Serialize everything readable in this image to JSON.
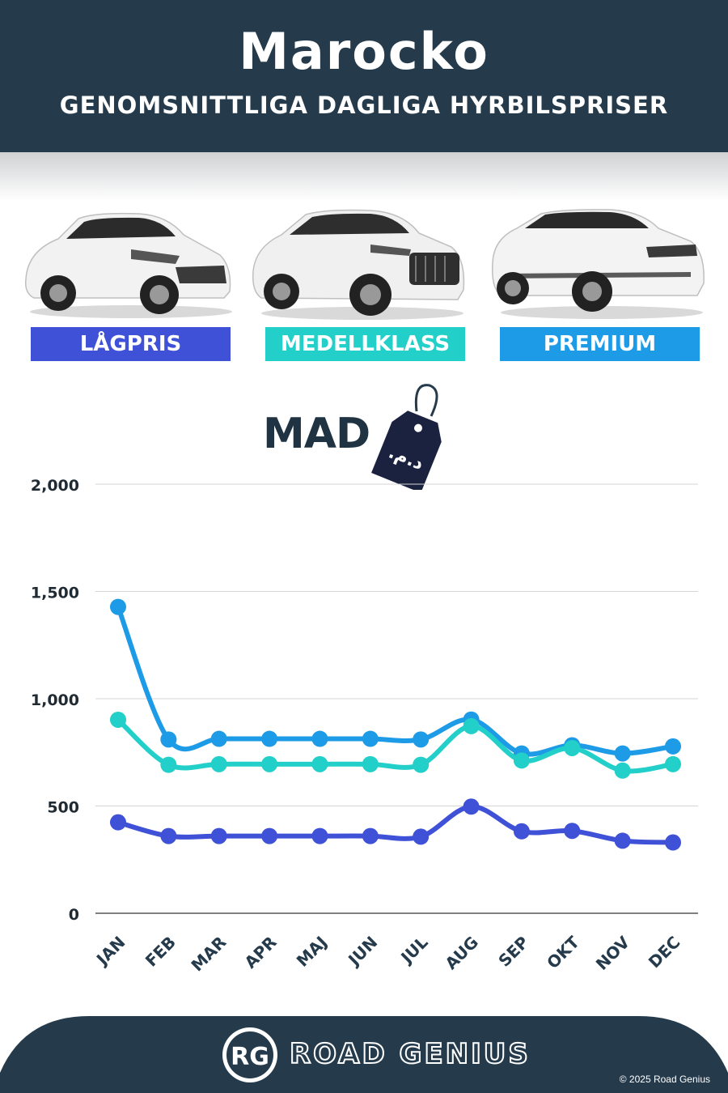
{
  "header": {
    "title": "Marocko",
    "subtitle": "GENOMSNITTLIGA DAGLIGA HYRBILSPRISER"
  },
  "categories": [
    {
      "label": "LÅGPRIS",
      "color": "#3f51d6"
    },
    {
      "label": "MEDELLKLASS",
      "color": "#22cfc9"
    },
    {
      "label": "PREMIUM",
      "color": "#1e9be6"
    }
  ],
  "currency": {
    "code": "MAD",
    "symbol": ".د.م"
  },
  "chart_data": {
    "type": "line",
    "categories": [
      "JAN",
      "FEB",
      "MAR",
      "APR",
      "MAJ",
      "JUN",
      "JUL",
      "AUG",
      "SEP",
      "OKT",
      "NOV",
      "DEC"
    ],
    "series": [
      {
        "name": "PREMIUM",
        "color": "#1e9be6",
        "values": [
          1428,
          810,
          813,
          813,
          813,
          813,
          810,
          903,
          745,
          783,
          745,
          778
        ]
      },
      {
        "name": "MEDELLKLASS",
        "color": "#22cfc9",
        "values": [
          902,
          692,
          695,
          695,
          695,
          695,
          692,
          872,
          712,
          770,
          665,
          695
        ]
      },
      {
        "name": "LÅGPRIS",
        "color": "#3f51d6",
        "values": [
          424,
          360,
          360,
          360,
          360,
          360,
          357,
          497,
          382,
          384,
          338,
          330
        ]
      }
    ],
    "yticks": [
      "2,000",
      "1,500",
      "1,000",
      "500",
      "0"
    ],
    "ylim": [
      0,
      2000
    ],
    "grid": true
  },
  "footer": {
    "logo_letters": "RG",
    "brand": "ROAD GENIUS",
    "copyright": "© 2025 Road Genius"
  }
}
